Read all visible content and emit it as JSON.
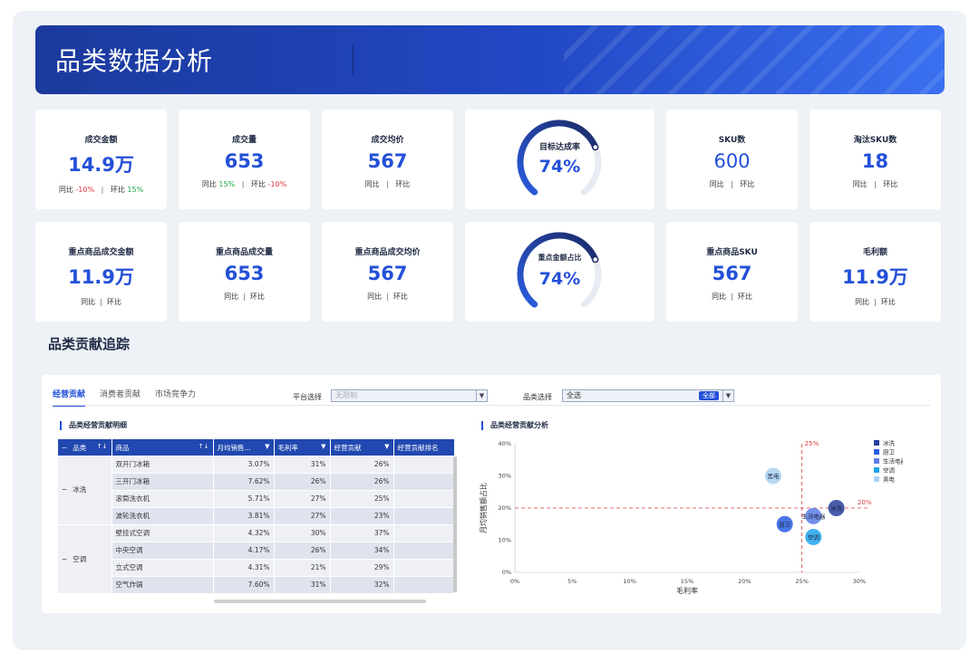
{
  "header": {
    "title": "品类数据分析"
  },
  "kpi_row1": [
    {
      "label": "成交金额",
      "value": "14.9万",
      "yoy_label": "同比",
      "yoy": "-10%",
      "yoy_color": "#e0393e",
      "mom_label": "环比",
      "mom": "15%",
      "mom_color": "#22a84a"
    },
    {
      "label": "成交量",
      "value": "653",
      "yoy_label": "同比",
      "yoy": "15%",
      "yoy_color": "#22a84a",
      "mom_label": "环比",
      "mom": "-10%",
      "mom_color": "#e0393e"
    },
    {
      "label": "成交均价",
      "value": "567",
      "yoy_label": "同比",
      "yoy": "",
      "mom_label": "环比",
      "mom": ""
    },
    {
      "label": "SKU数",
      "value": "600",
      "yoy_label": "同比",
      "yoy": "",
      "mom_label": "环比",
      "mom": ""
    },
    {
      "label": "淘汰SKU数",
      "value": "18",
      "yoy_label": "同比",
      "yoy": "",
      "mom_label": "环比",
      "mom": ""
    }
  ],
  "kpi_row2": [
    {
      "label": "重点商品成交金额",
      "value": "11.9万",
      "yoy_label": "同比",
      "mom_label": "环比"
    },
    {
      "label": "重点商品成交量",
      "value": "653",
      "yoy_label": "同比",
      "mom_label": "环比"
    },
    {
      "label": "重点商品成交均价",
      "value": "567",
      "yoy_label": "同比",
      "mom_label": "环比"
    },
    {
      "label": "重点商品SKU",
      "value": "567",
      "yoy_label": "同比",
      "mom_label": "环比"
    },
    {
      "label": "毛利额",
      "value": "11.9万",
      "yoy_label": "同比",
      "mom_label": "环比"
    }
  ],
  "gauges": [
    {
      "label": "目标达成率",
      "value": "74%",
      "fraction": 0.74
    },
    {
      "label": "重点金额占比",
      "value": "74%",
      "fraction": 0.74
    }
  ],
  "section": {
    "title": "品类贡献追踪"
  },
  "tabs": [
    {
      "label": "经营贡献",
      "active": true
    },
    {
      "label": "消费者贡献",
      "active": false
    },
    {
      "label": "市场竞争力",
      "active": false
    }
  ],
  "filters": {
    "platform_label": "平台选择",
    "platform_placeholder": "无限制",
    "category_label": "品类选择",
    "category_value": "全选",
    "category_tag": "全部"
  },
  "table": {
    "title": "品类经营贡献明细",
    "headers": [
      "品类",
      "商品",
      "月均销售...",
      "毛利率",
      "经营贡献",
      "经营贡献排名"
    ],
    "groups": [
      {
        "category": "冰洗",
        "rows": [
          [
            "双开门冰箱",
            "3.07%",
            "31%",
            "26%"
          ],
          [
            "三开门冰箱",
            "7.62%",
            "26%",
            "26%"
          ],
          [
            "滚筒洗衣机",
            "5.71%",
            "27%",
            "25%"
          ],
          [
            "波轮洗衣机",
            "3.81%",
            "27%",
            "23%"
          ]
        ]
      },
      {
        "category": "空调",
        "rows": [
          [
            "壁挂式空调",
            "4.32%",
            "30%",
            "37%"
          ],
          [
            "中央空调",
            "4.17%",
            "26%",
            "34%"
          ],
          [
            "立式空调",
            "4.31%",
            "21%",
            "29%"
          ],
          [
            "空气炸锅",
            "7.60%",
            "31%",
            "32%"
          ]
        ]
      }
    ]
  },
  "chart_data": {
    "type": "scatter",
    "title": "品类经营贡献分析",
    "xlabel": "毛利率",
    "ylabel": "月均销售额占比",
    "xlim": [
      0,
      30
    ],
    "ylim": [
      0,
      40
    ],
    "x_ticks": [
      "0%",
      "5%",
      "10%",
      "15%",
      "20%",
      "25%",
      "30%"
    ],
    "y_ticks": [
      "0%",
      "10%",
      "20%",
      "30%",
      "40%"
    ],
    "ref_x": 25,
    "ref_x_label": "25%",
    "ref_y": 20,
    "ref_y_label": "20%",
    "legend_position": "top-right",
    "series": [
      {
        "name": "冰洗",
        "color": "#2a3f9c",
        "x": 28,
        "y": 20,
        "label": "冰洗"
      },
      {
        "name": "厨卫",
        "color": "#2a5de0",
        "x": 23.5,
        "y": 15,
        "label": "厨卫"
      },
      {
        "name": "生活电器",
        "color": "#5a7ee6",
        "x": 26,
        "y": 17.5,
        "label": "生活电器"
      },
      {
        "name": "空调",
        "color": "#1ea3ec",
        "x": 26,
        "y": 11,
        "label": "空调"
      },
      {
        "name": "黑电",
        "color": "#a8d2f2",
        "x": 22.5,
        "y": 30,
        "label": "黑电"
      }
    ]
  }
}
